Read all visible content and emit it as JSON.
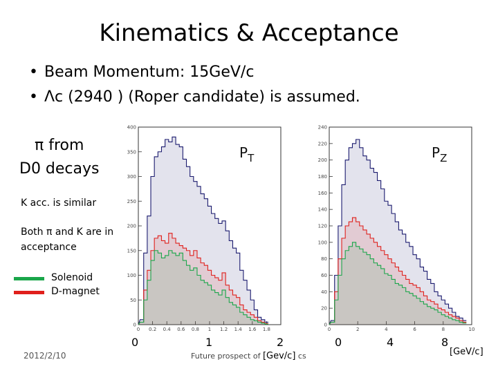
{
  "slide": {
    "title": "Kinematics & Acceptance",
    "bullets": [
      "Beam Momentum: 15GeV/c",
      "Λc (2940 ) (Roper candidate) is assumed."
    ],
    "bullet_symbol": "•",
    "side_title_line1": "π  from",
    "side_title_line2": "D0 decays",
    "k_note": "K acc. is similar",
    "both_note_line1": "Both π and K are in",
    "both_note_line2": "acceptance",
    "legend": [
      {
        "label": "Solenoid",
        "color": "#1aa64a"
      },
      {
        "label": "D-magnet",
        "color": "#e0201c"
      }
    ],
    "footer_date": "2012/2/10",
    "footer_text": "Future prospect of",
    "footer_text_tail": "cs",
    "pt_unit": "[Gev/c]",
    "pz_unit": "[GeV/c]"
  },
  "chart_data": [
    {
      "type": "line",
      "name": "PT",
      "title": "P",
      "title_sub": "T",
      "xlim": [
        0,
        2
      ],
      "ylim": [
        0,
        400
      ],
      "x_major_ticks": [
        "0",
        "1",
        "2"
      ],
      "x_minor_ticks": [
        "0",
        "0.2",
        "0.4",
        "0.6",
        "0.8",
        "1",
        "1.2",
        "1.4",
        "1.6",
        "1.8"
      ],
      "y_ticks": [
        "0",
        "50",
        "100",
        "150",
        "200",
        "250",
        "300",
        "350",
        "400"
      ],
      "x": [
        0.05,
        0.1,
        0.15,
        0.2,
        0.25,
        0.3,
        0.35,
        0.4,
        0.45,
        0.5,
        0.55,
        0.6,
        0.65,
        0.7,
        0.75,
        0.8,
        0.85,
        0.9,
        0.95,
        1.0,
        1.05,
        1.1,
        1.15,
        1.2,
        1.25,
        1.3,
        1.35,
        1.4,
        1.45,
        1.5,
        1.55,
        1.6,
        1.65,
        1.7,
        1.75,
        1.8
      ],
      "series": [
        {
          "color": "#1a1a6e",
          "values": [
            10,
            145,
            220,
            300,
            340,
            350,
            360,
            375,
            370,
            380,
            365,
            360,
            335,
            320,
            300,
            290,
            280,
            265,
            255,
            240,
            225,
            215,
            205,
            210,
            190,
            170,
            155,
            145,
            110,
            90,
            70,
            50,
            30,
            15,
            10,
            5
          ]
        },
        {
          "color": "#e0201c",
          "values": [
            5,
            70,
            110,
            150,
            175,
            180,
            170,
            165,
            185,
            175,
            165,
            160,
            155,
            150,
            140,
            150,
            135,
            125,
            120,
            110,
            100,
            95,
            90,
            105,
            80,
            70,
            60,
            55,
            40,
            30,
            25,
            20,
            15,
            8,
            5,
            2
          ]
        },
        {
          "color": "#1aa64a",
          "values": [
            5,
            50,
            90,
            130,
            150,
            145,
            135,
            140,
            150,
            145,
            140,
            145,
            130,
            120,
            110,
            115,
            100,
            90,
            85,
            80,
            70,
            65,
            60,
            70,
            55,
            45,
            40,
            35,
            25,
            20,
            15,
            10,
            8,
            5,
            3,
            1
          ]
        }
      ]
    },
    {
      "type": "line",
      "name": "PZ",
      "title": "P",
      "title_sub": "Z",
      "xlim": [
        0,
        10
      ],
      "ylim": [
        0,
        240
      ],
      "x_major_ticks": [
        "0",
        "4",
        "8"
      ],
      "x_minor_ticks": [
        "0",
        "2",
        "4",
        "6",
        "8",
        "10"
      ],
      "y_ticks": [
        "0",
        "20",
        "40",
        "60",
        "80",
        "100",
        "120",
        "140",
        "160",
        "180",
        "200",
        "220",
        "240"
      ],
      "x": [
        0.25,
        0.5,
        0.75,
        1.0,
        1.25,
        1.5,
        1.75,
        2.0,
        2.25,
        2.5,
        2.75,
        3.0,
        3.25,
        3.5,
        3.75,
        4.0,
        4.25,
        4.5,
        4.75,
        5.0,
        5.25,
        5.5,
        5.75,
        6.0,
        6.25,
        6.5,
        6.75,
        7.0,
        7.25,
        7.5,
        7.75,
        8.0,
        8.25,
        8.5,
        8.75,
        9.0,
        9.25,
        9.5
      ],
      "series": [
        {
          "color": "#1a1a6e",
          "values": [
            5,
            60,
            120,
            170,
            200,
            215,
            220,
            225,
            215,
            205,
            200,
            190,
            185,
            175,
            165,
            150,
            145,
            135,
            125,
            115,
            110,
            100,
            95,
            85,
            80,
            70,
            65,
            55,
            50,
            40,
            35,
            30,
            25,
            20,
            15,
            10,
            8,
            5
          ]
        },
        {
          "color": "#e0201c",
          "values": [
            3,
            40,
            80,
            105,
            120,
            125,
            130,
            125,
            120,
            115,
            110,
            105,
            100,
            95,
            90,
            85,
            80,
            75,
            70,
            65,
            60,
            55,
            50,
            48,
            45,
            40,
            35,
            30,
            28,
            25,
            20,
            18,
            15,
            12,
            10,
            8,
            5,
            3
          ]
        },
        {
          "color": "#1aa64a",
          "values": [
            3,
            30,
            60,
            80,
            90,
            95,
            100,
            95,
            92,
            88,
            85,
            80,
            75,
            72,
            68,
            62,
            60,
            55,
            50,
            48,
            45,
            40,
            38,
            35,
            32,
            28,
            25,
            22,
            20,
            18,
            15,
            12,
            10,
            8,
            6,
            5,
            3,
            2
          ]
        }
      ]
    }
  ]
}
